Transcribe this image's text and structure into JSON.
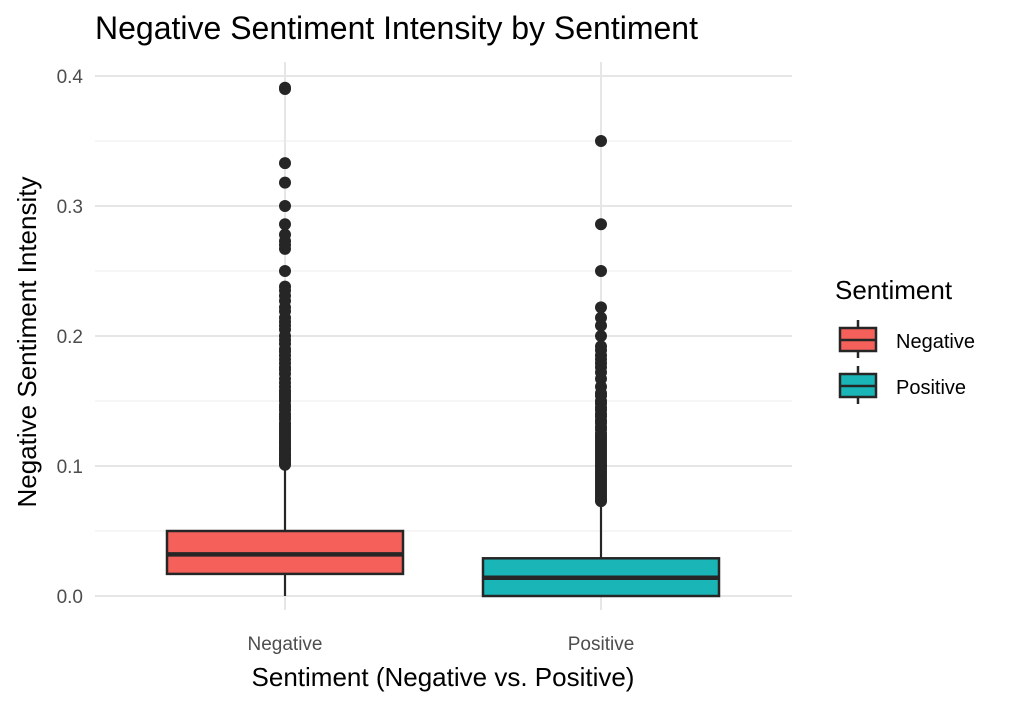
{
  "chart_data": {
    "type": "boxplot",
    "title": "Negative Sentiment Intensity by Sentiment",
    "xlabel": "Sentiment (Negative vs. Positive)",
    "ylabel": "Negative Sentiment Intensity",
    "ylim": [
      0,
      0.4
    ],
    "yticks": [
      0.0,
      0.1,
      0.2,
      0.3,
      0.4
    ],
    "ytick_labels": [
      "0.0",
      "0.1",
      "0.2",
      "0.3",
      "0.4"
    ],
    "grid": true,
    "legend": {
      "title": "Sentiment",
      "position": "right",
      "entries": [
        {
          "label": "Negative",
          "color": "#F8766D"
        },
        {
          "label": "Positive",
          "color": "#00BFC4"
        }
      ]
    },
    "categories": [
      "Negative",
      "Positive"
    ],
    "boxes": [
      {
        "category": "Negative",
        "color": "#F5605A",
        "whisker_low": 0.0,
        "q1": 0.017,
        "median": 0.032,
        "q3": 0.05,
        "whisker_high": 0.1,
        "outliers": [
          0.39,
          0.391,
          0.333,
          0.318,
          0.3,
          0.286,
          0.278,
          0.273,
          0.27,
          0.267,
          0.25,
          0.238,
          0.235,
          0.231,
          0.227,
          0.222,
          0.219,
          0.214,
          0.211,
          0.208,
          0.205,
          0.2,
          0.197,
          0.194,
          0.19,
          0.188,
          0.185,
          0.182,
          0.179,
          0.176,
          0.174,
          0.171,
          0.167,
          0.164,
          0.161,
          0.158,
          0.156,
          0.154,
          0.152,
          0.15,
          0.147,
          0.145,
          0.143,
          0.14,
          0.138,
          0.136,
          0.133,
          0.131,
          0.129,
          0.127,
          0.125,
          0.123,
          0.121,
          0.119,
          0.118,
          0.116,
          0.114,
          0.113,
          0.111,
          0.109,
          0.108,
          0.106,
          0.105,
          0.103,
          0.102,
          0.101
        ]
      },
      {
        "category": "Positive",
        "color": "#1AB6B7",
        "whisker_low": 0.0,
        "q1": 0.0,
        "median": 0.014,
        "q3": 0.029,
        "whisker_high": 0.072,
        "outliers": [
          0.35,
          0.286,
          0.25,
          0.222,
          0.214,
          0.208,
          0.2,
          0.192,
          0.189,
          0.185,
          0.182,
          0.179,
          0.176,
          0.172,
          0.167,
          0.161,
          0.156,
          0.154,
          0.15,
          0.148,
          0.145,
          0.143,
          0.14,
          0.138,
          0.135,
          0.133,
          0.13,
          0.128,
          0.125,
          0.123,
          0.121,
          0.119,
          0.117,
          0.115,
          0.113,
          0.111,
          0.109,
          0.107,
          0.105,
          0.103,
          0.101,
          0.1,
          0.098,
          0.096,
          0.094,
          0.092,
          0.09,
          0.088,
          0.086,
          0.084,
          0.082,
          0.08,
          0.078,
          0.076,
          0.074,
          0.073
        ]
      }
    ]
  }
}
